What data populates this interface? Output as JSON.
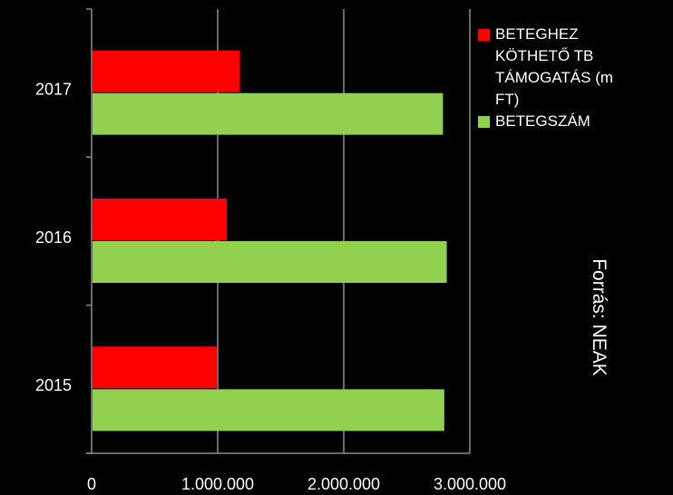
{
  "chart_data": {
    "type": "bar",
    "orientation": "horizontal",
    "categories": [
      "2015",
      "2016",
      "2017"
    ],
    "series": [
      {
        "name": "BETEGHEZ KÖTHETŐ TB TÁMOGATÁS (m FT)",
        "color": "#ff0000",
        "values": [
          990000,
          1065000,
          1170000
        ]
      },
      {
        "name": "BETEGSZÁM",
        "color": "#92d050",
        "values": [
          2790000,
          2810000,
          2780000
        ]
      }
    ],
    "xlim": [
      0,
      3000000
    ],
    "xticks": [
      0,
      {
        "value": 1000000,
        "label": "1.000.000"
      },
      {
        "value": 2000000,
        "label": "2.000.000"
      },
      {
        "value": 3000000,
        "label": "3.000.000"
      }
    ],
    "grid": true,
    "legend": "right",
    "annotation": "Forrás: NEAK"
  }
}
